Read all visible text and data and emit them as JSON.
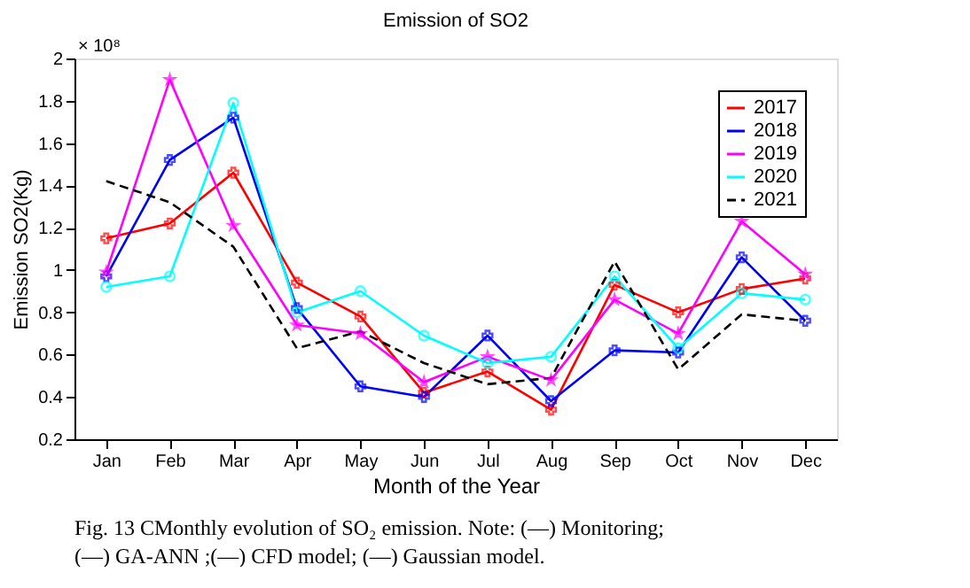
{
  "chart_data": {
    "type": "line",
    "title": "Emission of SO2",
    "xlabel": "Month of the Year",
    "ylabel": "Emission SO2(Kg)",
    "categories": [
      "Jan",
      "Feb",
      "Mar",
      "Apr",
      "May",
      "Jun",
      "Jul",
      "Aug",
      "Sep",
      "Oct",
      "Nov",
      "Dec"
    ],
    "series": [
      {
        "name": "2017",
        "color": "#ff0000",
        "marker": "cross",
        "line_style": "solid",
        "values": [
          1.15,
          1.22,
          1.46,
          0.94,
          0.78,
          0.42,
          0.52,
          0.34,
          0.93,
          0.8,
          0.91,
          0.96
        ]
      },
      {
        "name": "2018",
        "color": "#0000ff",
        "marker": "cross",
        "line_style": "solid",
        "values": [
          0.97,
          1.52,
          1.72,
          0.82,
          0.45,
          0.4,
          0.69,
          0.38,
          0.62,
          0.61,
          1.06,
          0.76
        ]
      },
      {
        "name": "2019",
        "color": "#ff00ff",
        "marker": "star",
        "line_style": "solid",
        "values": [
          0.99,
          1.9,
          1.21,
          0.74,
          0.7,
          0.47,
          0.59,
          0.48,
          0.86,
          0.7,
          1.23,
          0.98
        ]
      },
      {
        "name": "2020",
        "color": "#00ffff",
        "marker": "circle",
        "line_style": "solid",
        "values": [
          0.92,
          0.97,
          1.79,
          0.8,
          0.9,
          0.69,
          0.56,
          0.59,
          0.97,
          0.63,
          0.89,
          0.86
        ]
      },
      {
        "name": "2021",
        "color": "#000000",
        "marker": "none",
        "line_style": "dashed",
        "values": [
          1.42,
          1.32,
          1.11,
          0.63,
          0.71,
          0.56,
          0.46,
          0.49,
          1.04,
          0.53,
          0.79,
          0.76
        ]
      }
    ],
    "ylim": [
      0.2,
      2
    ],
    "yticks": [
      0.2,
      0.4,
      0.6,
      0.8,
      1,
      1.2,
      1.4,
      1.6,
      1.8,
      2
    ],
    "grid": false,
    "legend": "top right",
    "annotations": [
      "× 10⁸",
      "Fig. 13 CMonthly evolution of SO₂ emission.  Note: (—) Monitoring;",
      "(—) GA-ANN ;(—) CFD model; (—) Gaussian model."
    ]
  }
}
